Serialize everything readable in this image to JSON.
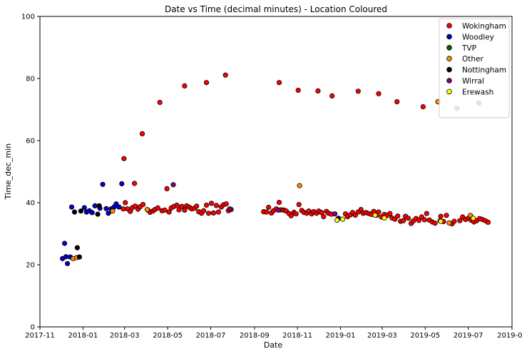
{
  "chart_data": {
    "type": "scatter",
    "title": "Date vs Time (decimal minutes) - Location Coloured",
    "xlabel": "Date",
    "ylabel": "Time_dec_min",
    "x_axis_type": "date",
    "xlim": [
      "2017-11-01",
      "2019-09-01"
    ],
    "ylim": [
      0,
      100
    ],
    "xticks": [
      "2017-11",
      "2018-01",
      "2018-03",
      "2018-05",
      "2018-07",
      "2018-09",
      "2018-11",
      "2019-01",
      "2019-03",
      "2019-05",
      "2019-07",
      "2019-09"
    ],
    "yticks": [
      0,
      20,
      40,
      60,
      80,
      100
    ],
    "grid": false,
    "legend_position": "top-right",
    "series": [
      {
        "name": "Wokingham",
        "color": "#ff0000",
        "points": [
          [
            "2018-02-28",
            54.2
          ],
          [
            "2018-03-15",
            46.2
          ],
          [
            "2018-03-26",
            62.2
          ],
          [
            "2018-04-20",
            72.3
          ],
          [
            "2018-04-30",
            44.5
          ],
          [
            "2018-05-25",
            77.6
          ],
          [
            "2018-06-25",
            78.7
          ],
          [
            "2018-07-22",
            81.1
          ],
          [
            "2018-10-06",
            78.7
          ],
          [
            "2018-11-02",
            76.2
          ],
          [
            "2018-11-30",
            76.0
          ],
          [
            "2018-12-20",
            74.4
          ],
          [
            "2019-01-26",
            75.9
          ],
          [
            "2019-02-24",
            75.1
          ],
          [
            "2019-03-22",
            72.5
          ],
          [
            "2019-04-28",
            70.9
          ],
          [
            "2019-06-15",
            70.4
          ],
          [
            "2019-07-16",
            72.1
          ],
          [
            "2018-02-27",
            38.0
          ],
          [
            "2018-03-02",
            40.0
          ],
          [
            "2018-03-05",
            38.0
          ],
          [
            "2018-03-09",
            37.2
          ],
          [
            "2018-03-12",
            38.4
          ],
          [
            "2018-03-16",
            38.9
          ],
          [
            "2018-03-20",
            37.9
          ],
          [
            "2018-03-23",
            38.7
          ],
          [
            "2018-03-27",
            39.4
          ],
          [
            "2018-04-03",
            37.6
          ],
          [
            "2018-04-06",
            36.9
          ],
          [
            "2018-04-10",
            37.3
          ],
          [
            "2018-04-13",
            37.8
          ],
          [
            "2018-04-17",
            38.3
          ],
          [
            "2018-04-23",
            37.4
          ],
          [
            "2018-04-27",
            37.6
          ],
          [
            "2018-05-03",
            37.0
          ],
          [
            "2018-05-06",
            38.3
          ],
          [
            "2018-05-10",
            38.8
          ],
          [
            "2018-05-14",
            39.2
          ],
          [
            "2018-05-17",
            37.7
          ],
          [
            "2018-05-21",
            38.8
          ],
          [
            "2018-05-25",
            37.6
          ],
          [
            "2018-05-28",
            39.0
          ],
          [
            "2018-06-01",
            38.5
          ],
          [
            "2018-06-04",
            38.0
          ],
          [
            "2018-06-08",
            38.2
          ],
          [
            "2018-06-11",
            38.9
          ],
          [
            "2018-06-14",
            37.1
          ],
          [
            "2018-06-18",
            36.6
          ],
          [
            "2018-06-21",
            37.4
          ],
          [
            "2018-06-25",
            39.2
          ],
          [
            "2018-06-28",
            36.6
          ],
          [
            "2018-07-02",
            39.8
          ],
          [
            "2018-07-05",
            36.7
          ],
          [
            "2018-07-09",
            39.1
          ],
          [
            "2018-07-12",
            37.0
          ],
          [
            "2018-07-16",
            38.6
          ],
          [
            "2018-07-19",
            39.3
          ],
          [
            "2018-07-23",
            39.6
          ],
          [
            "2018-07-26",
            37.4
          ],
          [
            "2018-07-30",
            37.8
          ],
          [
            "2018-09-14",
            37.1
          ],
          [
            "2018-09-18",
            37.0
          ],
          [
            "2018-09-21",
            38.5
          ],
          [
            "2018-09-25",
            36.7
          ],
          [
            "2018-09-28",
            37.4
          ],
          [
            "2018-10-02",
            38.0
          ],
          [
            "2018-10-06",
            40.1
          ],
          [
            "2018-10-09",
            37.7
          ],
          [
            "2018-10-13",
            37.6
          ],
          [
            "2018-10-16",
            37.3
          ],
          [
            "2018-10-20",
            36.5
          ],
          [
            "2018-10-23",
            35.8
          ],
          [
            "2018-10-27",
            36.9
          ],
          [
            "2018-10-30",
            36.4
          ],
          [
            "2018-11-03",
            39.4
          ],
          [
            "2018-11-07",
            37.5
          ],
          [
            "2018-11-10",
            36.9
          ],
          [
            "2018-11-14",
            36.6
          ],
          [
            "2018-11-17",
            37.3
          ],
          [
            "2018-11-21",
            36.4
          ],
          [
            "2018-11-24",
            37.1
          ],
          [
            "2018-11-28",
            36.6
          ],
          [
            "2018-12-01",
            37.3
          ],
          [
            "2018-12-05",
            36.8
          ],
          [
            "2018-12-08",
            35.5
          ],
          [
            "2018-12-12",
            37.2
          ],
          [
            "2018-12-15",
            36.6
          ],
          [
            "2018-12-19",
            36.3
          ],
          [
            "2019-01-08",
            36.4
          ],
          [
            "2019-01-11",
            35.5
          ],
          [
            "2019-01-15",
            36.1
          ],
          [
            "2019-01-18",
            36.8
          ],
          [
            "2019-01-22",
            36.0
          ],
          [
            "2019-01-26",
            37.0
          ],
          [
            "2019-01-30",
            37.8
          ],
          [
            "2019-02-02",
            36.6
          ],
          [
            "2019-02-06",
            36.8
          ],
          [
            "2019-02-10",
            36.5
          ],
          [
            "2019-02-14",
            36.2
          ],
          [
            "2019-02-17",
            37.2
          ],
          [
            "2019-02-21",
            36.0
          ],
          [
            "2019-02-24",
            37.0
          ],
          [
            "2019-02-28",
            35.4
          ],
          [
            "2019-03-04",
            36.2
          ],
          [
            "2019-03-08",
            35.9
          ],
          [
            "2019-03-12",
            36.5
          ],
          [
            "2019-03-15",
            35.1
          ],
          [
            "2019-03-19",
            34.7
          ],
          [
            "2019-03-23",
            35.7
          ],
          [
            "2019-03-27",
            34.0
          ],
          [
            "2019-03-31",
            34.2
          ],
          [
            "2019-04-03",
            35.6
          ],
          [
            "2019-04-07",
            35.0
          ],
          [
            "2019-04-11",
            33.3
          ],
          [
            "2019-04-14",
            34.1
          ],
          [
            "2019-04-18",
            34.9
          ],
          [
            "2019-04-22",
            34.3
          ],
          [
            "2019-04-26",
            35.4
          ],
          [
            "2019-04-30",
            34.5
          ],
          [
            "2019-05-03",
            36.5
          ],
          [
            "2019-05-07",
            34.4
          ],
          [
            "2019-05-11",
            33.8
          ],
          [
            "2019-05-15",
            33.4
          ],
          [
            "2019-05-23",
            35.6
          ],
          [
            "2019-05-27",
            33.9
          ],
          [
            "2019-05-31",
            35.9
          ],
          [
            "2019-06-08",
            33.2
          ],
          [
            "2019-06-11",
            34.0
          ],
          [
            "2019-06-19",
            34.2
          ],
          [
            "2019-06-23",
            35.4
          ],
          [
            "2019-06-27",
            34.6
          ],
          [
            "2019-07-01",
            35.0
          ],
          [
            "2019-07-05",
            34.4
          ],
          [
            "2019-07-09",
            33.8
          ],
          [
            "2019-07-13",
            34.2
          ],
          [
            "2019-07-17",
            34.9
          ],
          [
            "2019-07-21",
            34.6
          ],
          [
            "2019-07-25",
            34.2
          ],
          [
            "2019-07-29",
            33.7
          ]
        ]
      },
      {
        "name": "Woodley",
        "color": "#0000cc",
        "points": [
          [
            "2017-12-03",
            22.0
          ],
          [
            "2017-12-06",
            26.9
          ],
          [
            "2017-12-08",
            22.6
          ],
          [
            "2017-12-10",
            20.4
          ],
          [
            "2017-12-14",
            22.5
          ],
          [
            "2017-12-16",
            38.6
          ],
          [
            "2018-01-03",
            38.4
          ],
          [
            "2018-01-06",
            37.0
          ],
          [
            "2018-01-10",
            37.4
          ],
          [
            "2018-01-14",
            36.8
          ],
          [
            "2018-01-18",
            39.0
          ],
          [
            "2018-01-25",
            38.2
          ],
          [
            "2018-01-29",
            45.9
          ],
          [
            "2018-02-03",
            38.1
          ],
          [
            "2018-02-06",
            36.6
          ],
          [
            "2018-02-10",
            38.0
          ],
          [
            "2018-02-14",
            38.6
          ],
          [
            "2018-02-17",
            39.6
          ],
          [
            "2018-02-21",
            38.6
          ],
          [
            "2018-02-25",
            46.1
          ],
          [
            "2018-12-29",
            35.0
          ]
        ]
      },
      {
        "name": "TVP",
        "color": "#006400",
        "points": []
      },
      {
        "name": "Other",
        "color": "#ff8c00",
        "points": [
          [
            "2017-12-18",
            22.0
          ],
          [
            "2017-12-23",
            22.3
          ],
          [
            "2018-02-12",
            37.3
          ],
          [
            "2018-04-02",
            37.8
          ],
          [
            "2018-11-04",
            45.5
          ],
          [
            "2019-05-19",
            72.5
          ],
          [
            "2019-05-22",
            34.2
          ],
          [
            "2019-06-04",
            33.5
          ],
          [
            "2019-07-04",
            35.9
          ]
        ]
      },
      {
        "name": "Nottingham",
        "color": "#000000",
        "points": [
          [
            "2017-12-20",
            37.0
          ],
          [
            "2017-12-24",
            25.5
          ],
          [
            "2017-12-27",
            22.5
          ],
          [
            "2017-12-29",
            37.3
          ],
          [
            "2018-01-22",
            36.3
          ],
          [
            "2018-01-24",
            39.0
          ]
        ]
      },
      {
        "name": "Wirral",
        "color": "#800080",
        "points": [
          [
            "2018-05-09",
            45.8
          ],
          [
            "2018-07-28",
            38.0
          ],
          [
            "2018-10-05",
            37.6
          ],
          [
            "2018-12-24",
            36.4
          ]
        ]
      },
      {
        "name": "Erewash",
        "color": "#ffff00",
        "points": [
          [
            "2018-12-27",
            34.4
          ],
          [
            "2019-01-04",
            34.7
          ],
          [
            "2019-02-19",
            36.0
          ],
          [
            "2019-03-04",
            35.1
          ],
          [
            "2019-05-23",
            34.0
          ],
          [
            "2019-07-08",
            35.0
          ]
        ]
      }
    ]
  }
}
